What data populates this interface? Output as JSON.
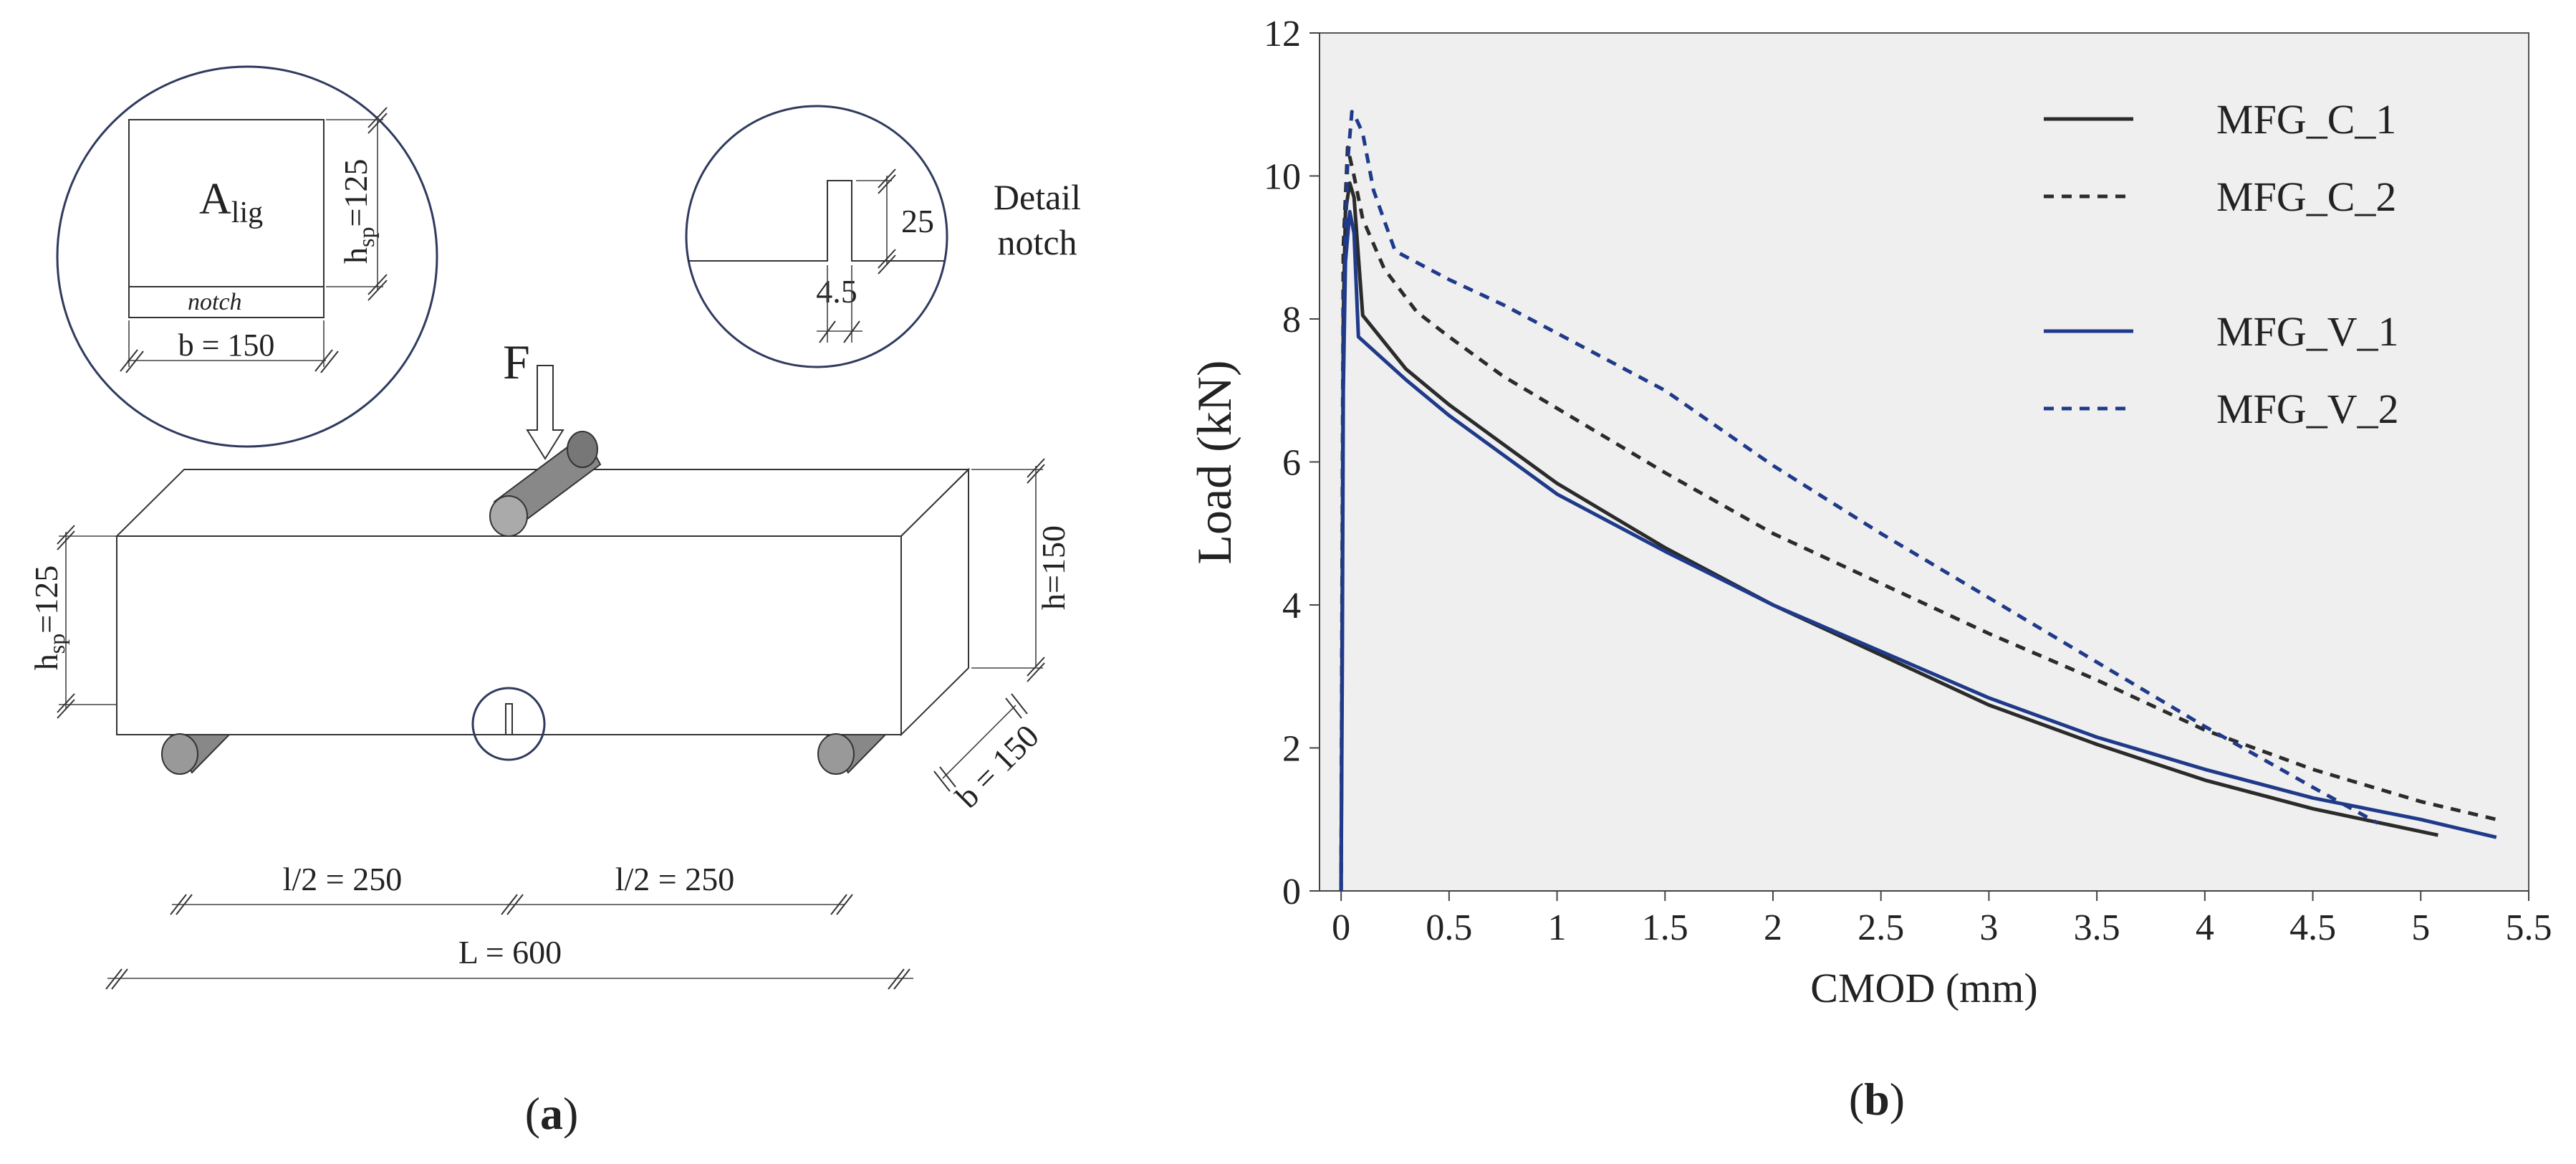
{
  "figure": {
    "panel_a_label": "a",
    "panel_b_label": "b"
  },
  "diagram": {
    "section_area_main": "A",
    "section_area_sub": "lig",
    "section_notch": "notch",
    "section_width": "b = 150",
    "section_height_main": "h",
    "section_height_sub": "sp",
    "section_height_val": "=125",
    "notch_depth": "25",
    "notch_width": "4.5",
    "notch_title_1": "Detail",
    "notch_title_2": "notch",
    "force": "F",
    "beam_height": "h=150",
    "beam_depth": "b = 150",
    "beam_ligament_main": "h",
    "beam_ligament_sub": "sp",
    "beam_ligament_val": "=125",
    "half_span_left": "l/2 = 250",
    "half_span_right": "l/2 = 250",
    "total_length": "L = 600"
  },
  "chart_data": {
    "type": "line",
    "title": "",
    "xlabel": "CMOD  (mm)",
    "ylabel": "Load   (kN)",
    "xlim": [
      -0.1,
      5.5
    ],
    "ylim": [
      0,
      12
    ],
    "xticks": [
      0,
      0.5,
      1,
      1.5,
      2,
      2.5,
      3,
      3.5,
      4,
      4.5,
      5,
      5.5
    ],
    "yticks": [
      0,
      2,
      4,
      6,
      8,
      10,
      12
    ],
    "grid": false,
    "legend_position": "top-right",
    "series": [
      {
        "name": "MFG_C_1",
        "color": "#2b2b2b",
        "dash": "solid",
        "x": [
          0,
          0.005,
          0.01,
          0.02,
          0.04,
          0.06,
          0.1,
          0.3,
          0.5,
          0.75,
          1.0,
          1.5,
          2.0,
          2.5,
          3.0,
          3.5,
          4.0,
          4.5,
          5.08
        ],
        "y": [
          0,
          4,
          8,
          9.5,
          9.9,
          9.7,
          8.05,
          7.3,
          6.8,
          6.25,
          5.7,
          4.8,
          4.0,
          3.3,
          2.6,
          2.05,
          1.55,
          1.15,
          0.78
        ]
      },
      {
        "name": "MFG_C_2",
        "color": "#2b2b2b",
        "dash": "dashed",
        "x": [
          0,
          0.005,
          0.01,
          0.03,
          0.06,
          0.1,
          0.2,
          0.35,
          0.5,
          0.75,
          1.0,
          1.5,
          2.0,
          2.5,
          3.0,
          3.5,
          4.0,
          4.5,
          5.0,
          5.35
        ],
        "y": [
          0,
          5,
          9,
          10.4,
          10.0,
          9.4,
          8.7,
          8.1,
          7.75,
          7.2,
          6.75,
          5.85,
          5.0,
          4.3,
          3.6,
          2.95,
          2.25,
          1.7,
          1.25,
          1.0
        ]
      },
      {
        "name": "MFG_V_1",
        "color": "#1f3a8a",
        "dash": "solid",
        "x": [
          0,
          0.005,
          0.01,
          0.02,
          0.04,
          0.06,
          0.08,
          0.3,
          0.5,
          0.75,
          1.0,
          1.5,
          2.0,
          2.5,
          3.0,
          3.5,
          4.0,
          4.5,
          5.0,
          5.35
        ],
        "y": [
          0,
          3,
          7,
          8.8,
          9.5,
          9.2,
          7.75,
          7.15,
          6.65,
          6.1,
          5.55,
          4.75,
          4.0,
          3.35,
          2.7,
          2.15,
          1.7,
          1.3,
          1.0,
          0.75
        ]
      },
      {
        "name": "MFG_V_2",
        "color": "#1f3a8a",
        "dash": "dashed",
        "x": [
          0,
          0.005,
          0.01,
          0.03,
          0.05,
          0.07,
          0.1,
          0.15,
          0.25,
          0.5,
          0.75,
          1.0,
          1.5,
          2.0,
          2.5,
          3.0,
          3.5,
          4.0,
          4.5,
          4.8
        ],
        "y": [
          0,
          4,
          8,
          10.2,
          10.9,
          10.8,
          10.6,
          9.8,
          8.95,
          8.55,
          8.2,
          7.8,
          7.0,
          5.95,
          5.0,
          4.1,
          3.2,
          2.3,
          1.45,
          0.95
        ]
      }
    ]
  }
}
